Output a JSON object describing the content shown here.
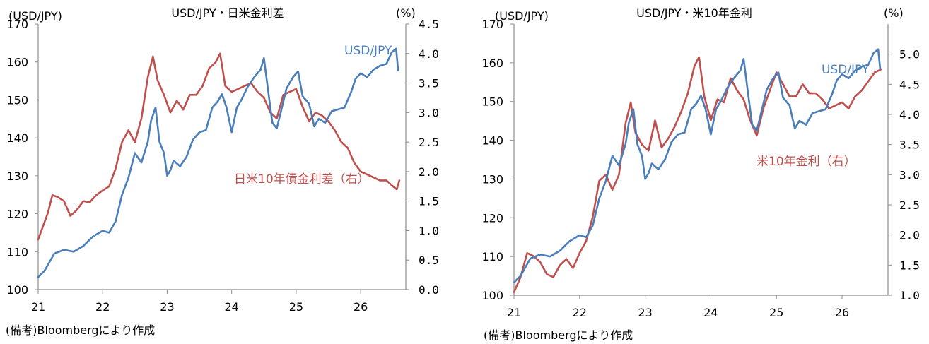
{
  "colors": {
    "usdjpy": "#4a7ebb",
    "rate": "#c0504d",
    "axis": "#8c8c8c"
  },
  "chart_data": [
    {
      "type": "line",
      "title": "USD/JPY・日米金利差",
      "left_unit": "(USD/JPY)",
      "right_unit": "(%)",
      "note": "(備考)Bloombergにより作成",
      "x_ticks": [
        "21",
        "22",
        "23",
        "24",
        "25",
        "26"
      ],
      "x_range": [
        2021.0,
        2026.7
      ],
      "y_left": {
        "range": [
          100,
          170
        ],
        "ticks": [
          "100",
          "110",
          "120",
          "130",
          "140",
          "150",
          "160",
          "170"
        ]
      },
      "y_right": {
        "range": [
          0.0,
          4.5
        ],
        "ticks": [
          "0.0",
          "0.5",
          "1.0",
          "1.5",
          "2.0",
          "2.5",
          "3.0",
          "3.5",
          "4.0",
          "4.5"
        ]
      },
      "series": [
        {
          "name": "USD/JPY",
          "axis": "left",
          "color_key": "usdjpy",
          "points": [
            [
              2021.0,
              103.3
            ],
            [
              2021.1,
              105
            ],
            [
              2021.25,
              109.5
            ],
            [
              2021.4,
              110.5
            ],
            [
              2021.55,
              110
            ],
            [
              2021.7,
              111.5
            ],
            [
              2021.85,
              114
            ],
            [
              2022.0,
              115.5
            ],
            [
              2022.1,
              115
            ],
            [
              2022.2,
              118
            ],
            [
              2022.3,
              125
            ],
            [
              2022.4,
              129.5
            ],
            [
              2022.5,
              136
            ],
            [
              2022.6,
              133.5
            ],
            [
              2022.7,
              139
            ],
            [
              2022.75,
              144.5
            ],
            [
              2022.82,
              148
            ],
            [
              2022.88,
              139
            ],
            [
              2022.95,
              136
            ],
            [
              2023.0,
              130
            ],
            [
              2023.05,
              131.5
            ],
            [
              2023.1,
              134
            ],
            [
              2023.2,
              132.5
            ],
            [
              2023.3,
              135
            ],
            [
              2023.4,
              139.5
            ],
            [
              2023.5,
              141.5
            ],
            [
              2023.6,
              142
            ],
            [
              2023.7,
              148
            ],
            [
              2023.78,
              149.5
            ],
            [
              2023.85,
              151.5
            ],
            [
              2023.92,
              148
            ],
            [
              2024.0,
              141.5
            ],
            [
              2024.08,
              148
            ],
            [
              2024.15,
              150
            ],
            [
              2024.25,
              153.5
            ],
            [
              2024.35,
              156
            ],
            [
              2024.45,
              158
            ],
            [
              2024.5,
              161
            ],
            [
              2024.58,
              150.5
            ],
            [
              2024.63,
              144
            ],
            [
              2024.7,
              142.5
            ],
            [
              2024.78,
              148
            ],
            [
              2024.85,
              153
            ],
            [
              2024.95,
              156
            ],
            [
              2025.03,
              157.5
            ],
            [
              2025.1,
              151
            ],
            [
              2025.2,
              149
            ],
            [
              2025.28,
              143
            ],
            [
              2025.35,
              145
            ],
            [
              2025.45,
              144
            ],
            [
              2025.55,
              147
            ],
            [
              2025.65,
              147.5
            ],
            [
              2025.75,
              148
            ],
            [
              2025.85,
              152
            ],
            [
              2025.92,
              155.5
            ],
            [
              2026.0,
              157
            ],
            [
              2026.1,
              156
            ],
            [
              2026.2,
              158
            ],
            [
              2026.3,
              159
            ],
            [
              2026.4,
              159.5
            ],
            [
              2026.48,
              162.5
            ],
            [
              2026.55,
              163.5
            ],
            [
              2026.58,
              157.8
            ]
          ]
        },
        {
          "name": "日米10年債金利差（右）",
          "axis": "right",
          "color_key": "rate",
          "points": [
            [
              2021.0,
              0.85
            ],
            [
              2021.05,
              1.0
            ],
            [
              2021.15,
              1.3
            ],
            [
              2021.22,
              1.6
            ],
            [
              2021.3,
              1.57
            ],
            [
              2021.4,
              1.5
            ],
            [
              2021.5,
              1.25
            ],
            [
              2021.6,
              1.35
            ],
            [
              2021.7,
              1.5
            ],
            [
              2021.8,
              1.48
            ],
            [
              2021.9,
              1.6
            ],
            [
              2022.0,
              1.68
            ],
            [
              2022.1,
              1.75
            ],
            [
              2022.2,
              2.05
            ],
            [
              2022.3,
              2.5
            ],
            [
              2022.4,
              2.7
            ],
            [
              2022.5,
              2.5
            ],
            [
              2022.6,
              2.9
            ],
            [
              2022.7,
              3.6
            ],
            [
              2022.78,
              3.95
            ],
            [
              2022.85,
              3.55
            ],
            [
              2022.95,
              3.3
            ],
            [
              2023.05,
              3.0
            ],
            [
              2023.15,
              3.2
            ],
            [
              2023.25,
              3.05
            ],
            [
              2023.35,
              3.3
            ],
            [
              2023.45,
              3.3
            ],
            [
              2023.55,
              3.45
            ],
            [
              2023.65,
              3.75
            ],
            [
              2023.75,
              3.85
            ],
            [
              2023.82,
              4.0
            ],
            [
              2023.9,
              3.45
            ],
            [
              2024.0,
              3.35
            ],
            [
              2024.1,
              3.4
            ],
            [
              2024.2,
              3.45
            ],
            [
              2024.3,
              3.5
            ],
            [
              2024.4,
              3.35
            ],
            [
              2024.5,
              3.25
            ],
            [
              2024.6,
              3.0
            ],
            [
              2024.7,
              2.9
            ],
            [
              2024.8,
              3.3
            ],
            [
              2024.9,
              3.35
            ],
            [
              2025.0,
              3.4
            ],
            [
              2025.1,
              3.1
            ],
            [
              2025.2,
              2.85
            ],
            [
              2025.3,
              3.0
            ],
            [
              2025.4,
              2.95
            ],
            [
              2025.5,
              2.85
            ],
            [
              2025.6,
              2.7
            ],
            [
              2025.7,
              2.5
            ],
            [
              2025.8,
              2.4
            ],
            [
              2025.9,
              2.15
            ],
            [
              2026.0,
              2.0
            ],
            [
              2026.1,
              1.95
            ],
            [
              2026.2,
              1.9
            ],
            [
              2026.3,
              1.85
            ],
            [
              2026.4,
              1.85
            ],
            [
              2026.5,
              1.75
            ],
            [
              2026.56,
              1.7
            ],
            [
              2026.6,
              1.85
            ]
          ]
        }
      ],
      "labels": {
        "usdjpy": "USD/JPY",
        "rate": "日米10年債金利差（右）"
      }
    },
    {
      "type": "line",
      "title": "USD/JPY・米10年金利",
      "left_unit": "(USD/JPY)",
      "right_unit": "(%)",
      "note": "(備考)Bloombergにより作成",
      "x_ticks": [
        "21",
        "22",
        "23",
        "24",
        "25",
        "26"
      ],
      "x_range": [
        2021.0,
        2026.7
      ],
      "y_left": {
        "range": [
          100,
          170
        ],
        "ticks": [
          "100",
          "110",
          "120",
          "130",
          "140",
          "150",
          "160",
          "170"
        ]
      },
      "y_right": {
        "range": [
          1.0,
          5.5
        ],
        "ticks": [
          "1.0",
          "1.5",
          "2.0",
          "2.5",
          "3.0",
          "3.5",
          "4.0",
          "4.5",
          "5.0"
        ]
      },
      "series": [
        {
          "name": "USD/JPY",
          "axis": "left",
          "color_key": "usdjpy",
          "points": [
            [
              2021.0,
              103.3
            ],
            [
              2021.1,
              105
            ],
            [
              2021.25,
              109.5
            ],
            [
              2021.4,
              110.5
            ],
            [
              2021.55,
              110
            ],
            [
              2021.7,
              111.5
            ],
            [
              2021.85,
              114
            ],
            [
              2022.0,
              115.5
            ],
            [
              2022.1,
              115
            ],
            [
              2022.2,
              118
            ],
            [
              2022.3,
              125
            ],
            [
              2022.4,
              129.5
            ],
            [
              2022.5,
              136
            ],
            [
              2022.6,
              133.5
            ],
            [
              2022.7,
              139
            ],
            [
              2022.75,
              144.5
            ],
            [
              2022.82,
              148
            ],
            [
              2022.88,
              139
            ],
            [
              2022.95,
              136
            ],
            [
              2023.0,
              130
            ],
            [
              2023.05,
              131.5
            ],
            [
              2023.1,
              134
            ],
            [
              2023.2,
              132.5
            ],
            [
              2023.3,
              135
            ],
            [
              2023.4,
              139.5
            ],
            [
              2023.5,
              141.5
            ],
            [
              2023.6,
              142
            ],
            [
              2023.7,
              148
            ],
            [
              2023.78,
              149.5
            ],
            [
              2023.85,
              151.5
            ],
            [
              2023.92,
              148
            ],
            [
              2024.0,
              141.5
            ],
            [
              2024.08,
              148
            ],
            [
              2024.15,
              150
            ],
            [
              2024.25,
              153.5
            ],
            [
              2024.35,
              156
            ],
            [
              2024.45,
              158
            ],
            [
              2024.5,
              161
            ],
            [
              2024.58,
              150.5
            ],
            [
              2024.63,
              144
            ],
            [
              2024.7,
              142.5
            ],
            [
              2024.78,
              148
            ],
            [
              2024.85,
              153
            ],
            [
              2024.95,
              156
            ],
            [
              2025.03,
              157.5
            ],
            [
              2025.1,
              151
            ],
            [
              2025.2,
              149
            ],
            [
              2025.28,
              143
            ],
            [
              2025.35,
              145
            ],
            [
              2025.45,
              144
            ],
            [
              2025.55,
              147
            ],
            [
              2025.65,
              147.5
            ],
            [
              2025.75,
              148
            ],
            [
              2025.85,
              152
            ],
            [
              2025.92,
              155.5
            ],
            [
              2026.0,
              157
            ],
            [
              2026.1,
              156
            ],
            [
              2026.2,
              158
            ],
            [
              2026.3,
              159
            ],
            [
              2026.4,
              159.5
            ],
            [
              2026.48,
              162.5
            ],
            [
              2026.55,
              163.5
            ],
            [
              2026.58,
              158.5
            ]
          ]
        },
        {
          "name": "米10年金利（右）",
          "axis": "right",
          "color_key": "rate",
          "points": [
            [
              2021.0,
              1.05
            ],
            [
              2021.1,
              1.3
            ],
            [
              2021.2,
              1.7
            ],
            [
              2021.3,
              1.65
            ],
            [
              2021.4,
              1.55
            ],
            [
              2021.5,
              1.35
            ],
            [
              2021.6,
              1.3
            ],
            [
              2021.7,
              1.5
            ],
            [
              2021.8,
              1.6
            ],
            [
              2021.9,
              1.45
            ],
            [
              2022.0,
              1.7
            ],
            [
              2022.1,
              1.9
            ],
            [
              2022.2,
              2.3
            ],
            [
              2022.3,
              2.9
            ],
            [
              2022.4,
              3.0
            ],
            [
              2022.5,
              2.75
            ],
            [
              2022.6,
              3.0
            ],
            [
              2022.7,
              3.85
            ],
            [
              2022.78,
              4.2
            ],
            [
              2022.85,
              3.7
            ],
            [
              2022.95,
              3.5
            ],
            [
              2023.05,
              3.4
            ],
            [
              2023.15,
              3.9
            ],
            [
              2023.25,
              3.45
            ],
            [
              2023.35,
              3.6
            ],
            [
              2023.45,
              3.8
            ],
            [
              2023.55,
              4.05
            ],
            [
              2023.65,
              4.35
            ],
            [
              2023.75,
              4.8
            ],
            [
              2023.82,
              4.95
            ],
            [
              2023.9,
              4.3
            ],
            [
              2024.0,
              3.9
            ],
            [
              2024.1,
              4.25
            ],
            [
              2024.2,
              4.2
            ],
            [
              2024.3,
              4.6
            ],
            [
              2024.4,
              4.4
            ],
            [
              2024.5,
              4.25
            ],
            [
              2024.6,
              3.9
            ],
            [
              2024.7,
              3.65
            ],
            [
              2024.8,
              4.1
            ],
            [
              2024.9,
              4.4
            ],
            [
              2025.0,
              4.7
            ],
            [
              2025.1,
              4.5
            ],
            [
              2025.2,
              4.3
            ],
            [
              2025.3,
              4.3
            ],
            [
              2025.4,
              4.5
            ],
            [
              2025.5,
              4.35
            ],
            [
              2025.6,
              4.35
            ],
            [
              2025.7,
              4.25
            ],
            [
              2025.8,
              4.1
            ],
            [
              2025.9,
              4.15
            ],
            [
              2026.0,
              4.2
            ],
            [
              2026.1,
              4.1
            ],
            [
              2026.2,
              4.3
            ],
            [
              2026.3,
              4.4
            ],
            [
              2026.4,
              4.55
            ],
            [
              2026.5,
              4.7
            ],
            [
              2026.6,
              4.75
            ]
          ]
        }
      ],
      "labels": {
        "usdjpy": "USD/JPY",
        "rate": "米10年金利（右）"
      }
    }
  ]
}
